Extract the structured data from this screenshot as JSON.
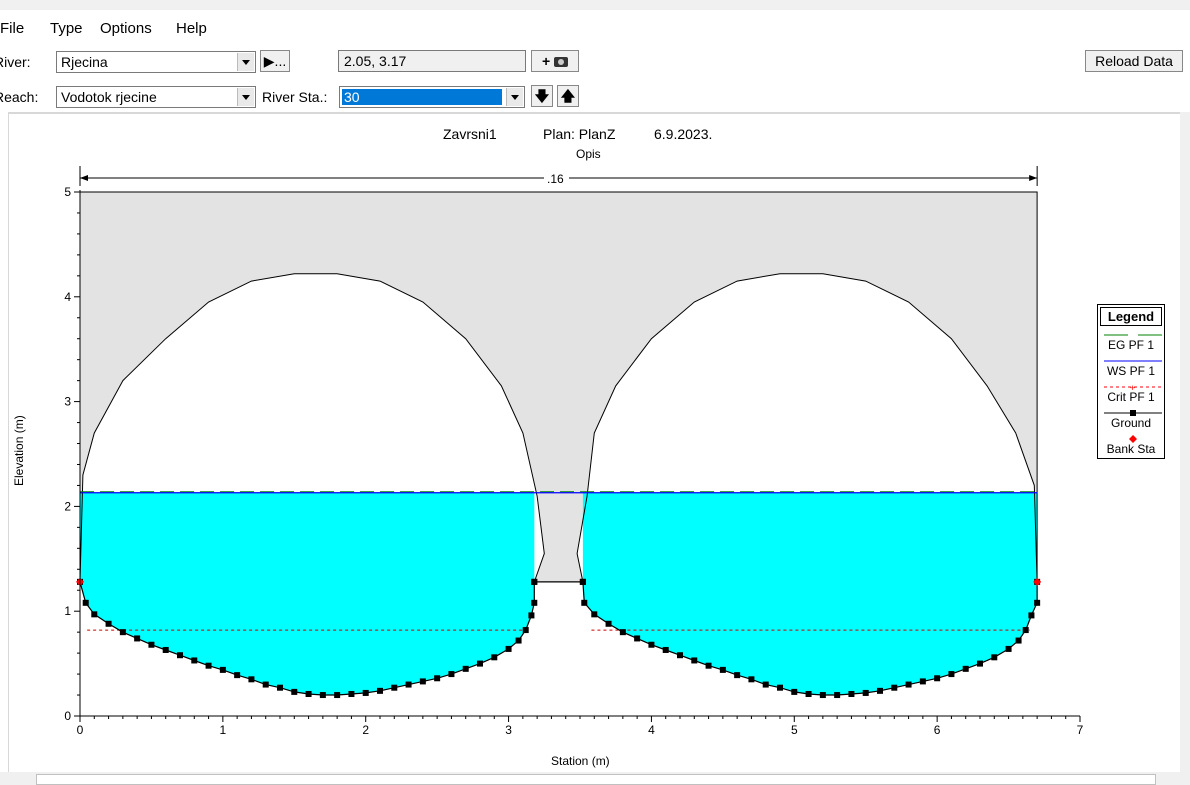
{
  "menu": {
    "file": "File",
    "type": "Type",
    "options": "Options",
    "help": "Help"
  },
  "toolbar": {
    "river_label": "River:",
    "river_value": "Rjecina",
    "reach_label": "Reach:",
    "reach_value": "Vodotok rjecine",
    "play_glyph": "▶...",
    "coords": "2.05, 3.17",
    "river_sta_label": "River Sta.:",
    "river_sta_value": "30",
    "reload": "Reload Data"
  },
  "plot_header": {
    "title": "Zavrsni1",
    "plan": "Plan: PlanZ",
    "date": "6.9.2023.",
    "subtitle": "Opis"
  },
  "top_dimension_label": ".16",
  "legend": {
    "title": "Legend",
    "items": [
      {
        "label": "EG PF 1",
        "color": "#008000"
      },
      {
        "label": "WS PF 1",
        "color": "#0000ff"
      },
      {
        "label": "Crit PF 1",
        "color": "#ff0000"
      },
      {
        "label": "Ground",
        "color": "#000000"
      },
      {
        "label": "Bank Sta",
        "color": "#ff0000"
      }
    ]
  },
  "chart_data": {
    "type": "line",
    "xlabel": "Station (m)",
    "ylabel": "Elevation (m)",
    "xlim": [
      0,
      7
    ],
    "ylim": [
      0,
      5
    ],
    "x_ticks": [
      "0",
      "1",
      "2",
      "3",
      "4",
      "5",
      "6",
      "7"
    ],
    "y_ticks": [
      "0",
      "1",
      "2",
      "3",
      "4",
      "5"
    ],
    "water_surface_elevation": 2.13,
    "energy_grade_elevation": 2.14,
    "critical_elevation": 0.82,
    "bank_stations": [
      [
        0.0,
        1.28
      ],
      [
        6.7,
        1.28
      ]
    ],
    "lid_elevation": 5.0,
    "culvert_left": {
      "ground": [
        [
          0.0,
          1.28
        ],
        [
          0.04,
          1.08
        ],
        [
          0.1,
          0.97
        ],
        [
          0.2,
          0.88
        ],
        [
          0.3,
          0.8
        ],
        [
          0.4,
          0.74
        ],
        [
          0.5,
          0.68
        ],
        [
          0.6,
          0.63
        ],
        [
          0.7,
          0.58
        ],
        [
          0.8,
          0.53
        ],
        [
          0.9,
          0.48
        ],
        [
          1.0,
          0.44
        ],
        [
          1.1,
          0.39
        ],
        [
          1.2,
          0.35
        ],
        [
          1.3,
          0.3
        ],
        [
          1.4,
          0.27
        ],
        [
          1.5,
          0.23
        ],
        [
          1.6,
          0.21
        ],
        [
          1.7,
          0.2
        ],
        [
          1.8,
          0.2
        ],
        [
          1.9,
          0.21
        ],
        [
          2.0,
          0.22
        ],
        [
          2.1,
          0.24
        ],
        [
          2.2,
          0.27
        ],
        [
          2.3,
          0.3
        ],
        [
          2.4,
          0.33
        ],
        [
          2.5,
          0.36
        ],
        [
          2.6,
          0.4
        ],
        [
          2.7,
          0.45
        ],
        [
          2.8,
          0.5
        ],
        [
          2.9,
          0.56
        ],
        [
          3.0,
          0.64
        ],
        [
          3.07,
          0.72
        ],
        [
          3.12,
          0.82
        ],
        [
          3.16,
          0.96
        ],
        [
          3.18,
          1.08
        ],
        [
          3.18,
          1.28
        ]
      ],
      "roof": [
        [
          0.0,
          1.28
        ],
        [
          0.02,
          2.3
        ],
        [
          0.1,
          2.7
        ],
        [
          0.3,
          3.2
        ],
        [
          0.6,
          3.6
        ],
        [
          0.9,
          3.95
        ],
        [
          1.2,
          4.15
        ],
        [
          1.5,
          4.22
        ],
        [
          1.8,
          4.22
        ],
        [
          2.1,
          4.15
        ],
        [
          2.4,
          3.95
        ],
        [
          2.7,
          3.6
        ],
        [
          2.95,
          3.15
        ],
        [
          3.1,
          2.7
        ],
        [
          3.2,
          2.1
        ],
        [
          3.25,
          1.55
        ],
        [
          3.18,
          1.28
        ]
      ]
    },
    "culvert_right": {
      "ground": [
        [
          3.52,
          1.28
        ],
        [
          3.53,
          1.08
        ],
        [
          3.6,
          0.97
        ],
        [
          3.7,
          0.88
        ],
        [
          3.8,
          0.8
        ],
        [
          3.9,
          0.74
        ],
        [
          4.0,
          0.68
        ],
        [
          4.1,
          0.63
        ],
        [
          4.2,
          0.58
        ],
        [
          4.3,
          0.53
        ],
        [
          4.4,
          0.48
        ],
        [
          4.5,
          0.44
        ],
        [
          4.6,
          0.39
        ],
        [
          4.7,
          0.35
        ],
        [
          4.8,
          0.3
        ],
        [
          4.9,
          0.27
        ],
        [
          5.0,
          0.23
        ],
        [
          5.1,
          0.21
        ],
        [
          5.2,
          0.2
        ],
        [
          5.3,
          0.2
        ],
        [
          5.4,
          0.21
        ],
        [
          5.5,
          0.22
        ],
        [
          5.6,
          0.24
        ],
        [
          5.7,
          0.27
        ],
        [
          5.8,
          0.3
        ],
        [
          5.9,
          0.33
        ],
        [
          6.0,
          0.36
        ],
        [
          6.1,
          0.4
        ],
        [
          6.2,
          0.45
        ],
        [
          6.3,
          0.5
        ],
        [
          6.4,
          0.56
        ],
        [
          6.5,
          0.64
        ],
        [
          6.57,
          0.72
        ],
        [
          6.62,
          0.82
        ],
        [
          6.66,
          0.96
        ],
        [
          6.7,
          1.08
        ],
        [
          6.7,
          1.28
        ]
      ],
      "roof": [
        [
          3.52,
          1.28
        ],
        [
          3.48,
          1.55
        ],
        [
          3.55,
          2.1
        ],
        [
          3.6,
          2.7
        ],
        [
          3.75,
          3.15
        ],
        [
          4.0,
          3.6
        ],
        [
          4.3,
          3.95
        ],
        [
          4.6,
          4.15
        ],
        [
          4.9,
          4.22
        ],
        [
          5.2,
          4.22
        ],
        [
          5.5,
          4.15
        ],
        [
          5.8,
          3.95
        ],
        [
          6.1,
          3.6
        ],
        [
          6.35,
          3.15
        ],
        [
          6.55,
          2.7
        ],
        [
          6.68,
          2.2
        ],
        [
          6.7,
          1.28
        ]
      ]
    },
    "web_between": [
      [
        3.18,
        1.28
      ],
      [
        3.52,
        1.28
      ]
    ]
  }
}
